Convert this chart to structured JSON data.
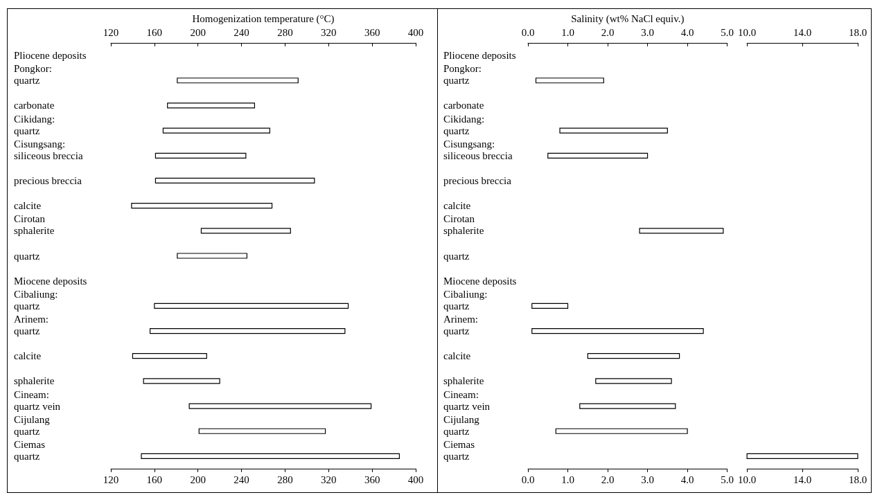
{
  "chart_data": [
    {
      "type": "bar",
      "orientation": "horizontal",
      "x2label": "Homogenization temperature (°C)",
      "color": "#ffffff",
      "categories": [
        "Pliocene deposits",
        "Pongkor:\nquartz",
        "carbonate",
        "Cikidang:\nquartz",
        "Cisungsang:\nsiliceous breccia",
        "precious breccia",
        "calcite",
        "Cirotan\nsphalerite",
        "quartz",
        "Miocene deposits",
        "Cibaliung:\nquartz",
        "Arinem:\nquartz",
        "calcite",
        "sphalerite",
        "Cineam:\nquartz vein",
        "Cijulang\nquartz",
        "Ciemas\nquartz"
      ],
      "base": [
        null,
        181,
        172,
        168,
        161,
        161,
        139,
        203,
        181,
        null,
        160,
        156,
        140,
        150,
        192,
        201,
        148
      ],
      "values": [
        null,
        111,
        80,
        98,
        83,
        146,
        129,
        82,
        64,
        null,
        178,
        179,
        68,
        70,
        167,
        116,
        237
      ],
      "xlim": [
        120,
        400
      ],
      "xticks": [
        120,
        160,
        200,
        240,
        280,
        320,
        360,
        400
      ],
      "x2lim": [
        120,
        400
      ],
      "x2ticks": [
        120,
        160,
        200,
        240,
        280,
        320,
        360,
        400
      ]
    },
    {
      "type": "bar",
      "orientation": "horizontal",
      "x2label": "Salinity (wt% NaCl equiv.)",
      "color": "#ffffff",
      "categories": [
        "Pliocene deposits",
        "Pongkor:\nquartz",
        "carbonate",
        "Cikidang:\nquartz",
        "Cisungsang:\nsiliceous breccia",
        "precious breccia",
        "calcite",
        "Cirotan\nsphalerite",
        "quartz",
        "Miocene deposits",
        "Cibaliung:\nquartz",
        "Arinem:\nquartz",
        "calcite",
        "sphalerite",
        "Cineam:\nquartz vein",
        "Cijulang\nquartz",
        "Ciemas\nquartz"
      ],
      "base": [
        null,
        0.2,
        null,
        0.8,
        0.5,
        null,
        null,
        2.8,
        null,
        null,
        0.1,
        0.1,
        1.5,
        1.7,
        1.3,
        0.7,
        null
      ],
      "values": [
        null,
        1.7,
        null,
        2.7,
        2.5,
        null,
        null,
        2.1,
        null,
        null,
        0.9,
        4.3,
        2.3,
        1.9,
        2.4,
        3.3,
        null
      ],
      "xlim": [
        0,
        5
      ],
      "xticks": [
        {
          "value": 0,
          "label": "0.0"
        },
        {
          "value": 1,
          "label": "1.0"
        },
        {
          "value": 2,
          "label": "2.0"
        },
        {
          "value": 3,
          "label": "3.0"
        },
        {
          "value": 4,
          "label": "4.0"
        },
        {
          "value": 5,
          "label": "5.0"
        }
      ],
      "x2lim": [
        0,
        5
      ],
      "x2ticks": [
        {
          "value": 0,
          "label": "0.0"
        },
        {
          "value": 1,
          "label": "1.0"
        },
        {
          "value": 2,
          "label": "2.0"
        },
        {
          "value": 3,
          "label": "3.0"
        },
        {
          "value": 4,
          "label": "4.0"
        },
        {
          "value": 5,
          "label": "5.0"
        }
      ]
    },
    {
      "type": "bar",
      "orientation": "horizontal",
      "color": "#ffffff",
      "tick_labels": "x",
      "categories": [
        "Pliocene deposits",
        "Pongkor:\nquartz",
        "carbonate",
        "Cikidang:\nquartz",
        "Cisungsang:\nsiliceous breccia",
        "precious breccia",
        "calcite",
        "Cirotan\nsphalerite",
        "quartz",
        "Miocene deposits",
        "Cibaliung:\nquartz",
        "Arinem:\nquartz",
        "calcite",
        "sphalerite",
        "Cineam:\nquartz vein",
        "Cijulang\nquartz",
        "Ciemas\nquartz"
      ],
      "base": [
        null,
        null,
        null,
        null,
        null,
        null,
        null,
        null,
        null,
        null,
        null,
        null,
        null,
        null,
        null,
        null,
        10
      ],
      "values": [
        null,
        null,
        null,
        null,
        null,
        null,
        null,
        null,
        null,
        null,
        null,
        null,
        null,
        null,
        null,
        null,
        8
      ],
      "xlim": [
        10,
        18
      ],
      "xticks": [
        {
          "value": 10,
          "label": "10.0"
        },
        {
          "value": 14,
          "label": "14.0"
        },
        {
          "value": 18,
          "label": "18.0"
        }
      ],
      "x2lim": [
        10,
        18
      ],
      "x2ticks": [
        {
          "value": 10,
          "label": "10.0"
        },
        {
          "value": 14,
          "label": "14.0"
        },
        {
          "value": 18,
          "label": "18.0"
        }
      ]
    }
  ]
}
